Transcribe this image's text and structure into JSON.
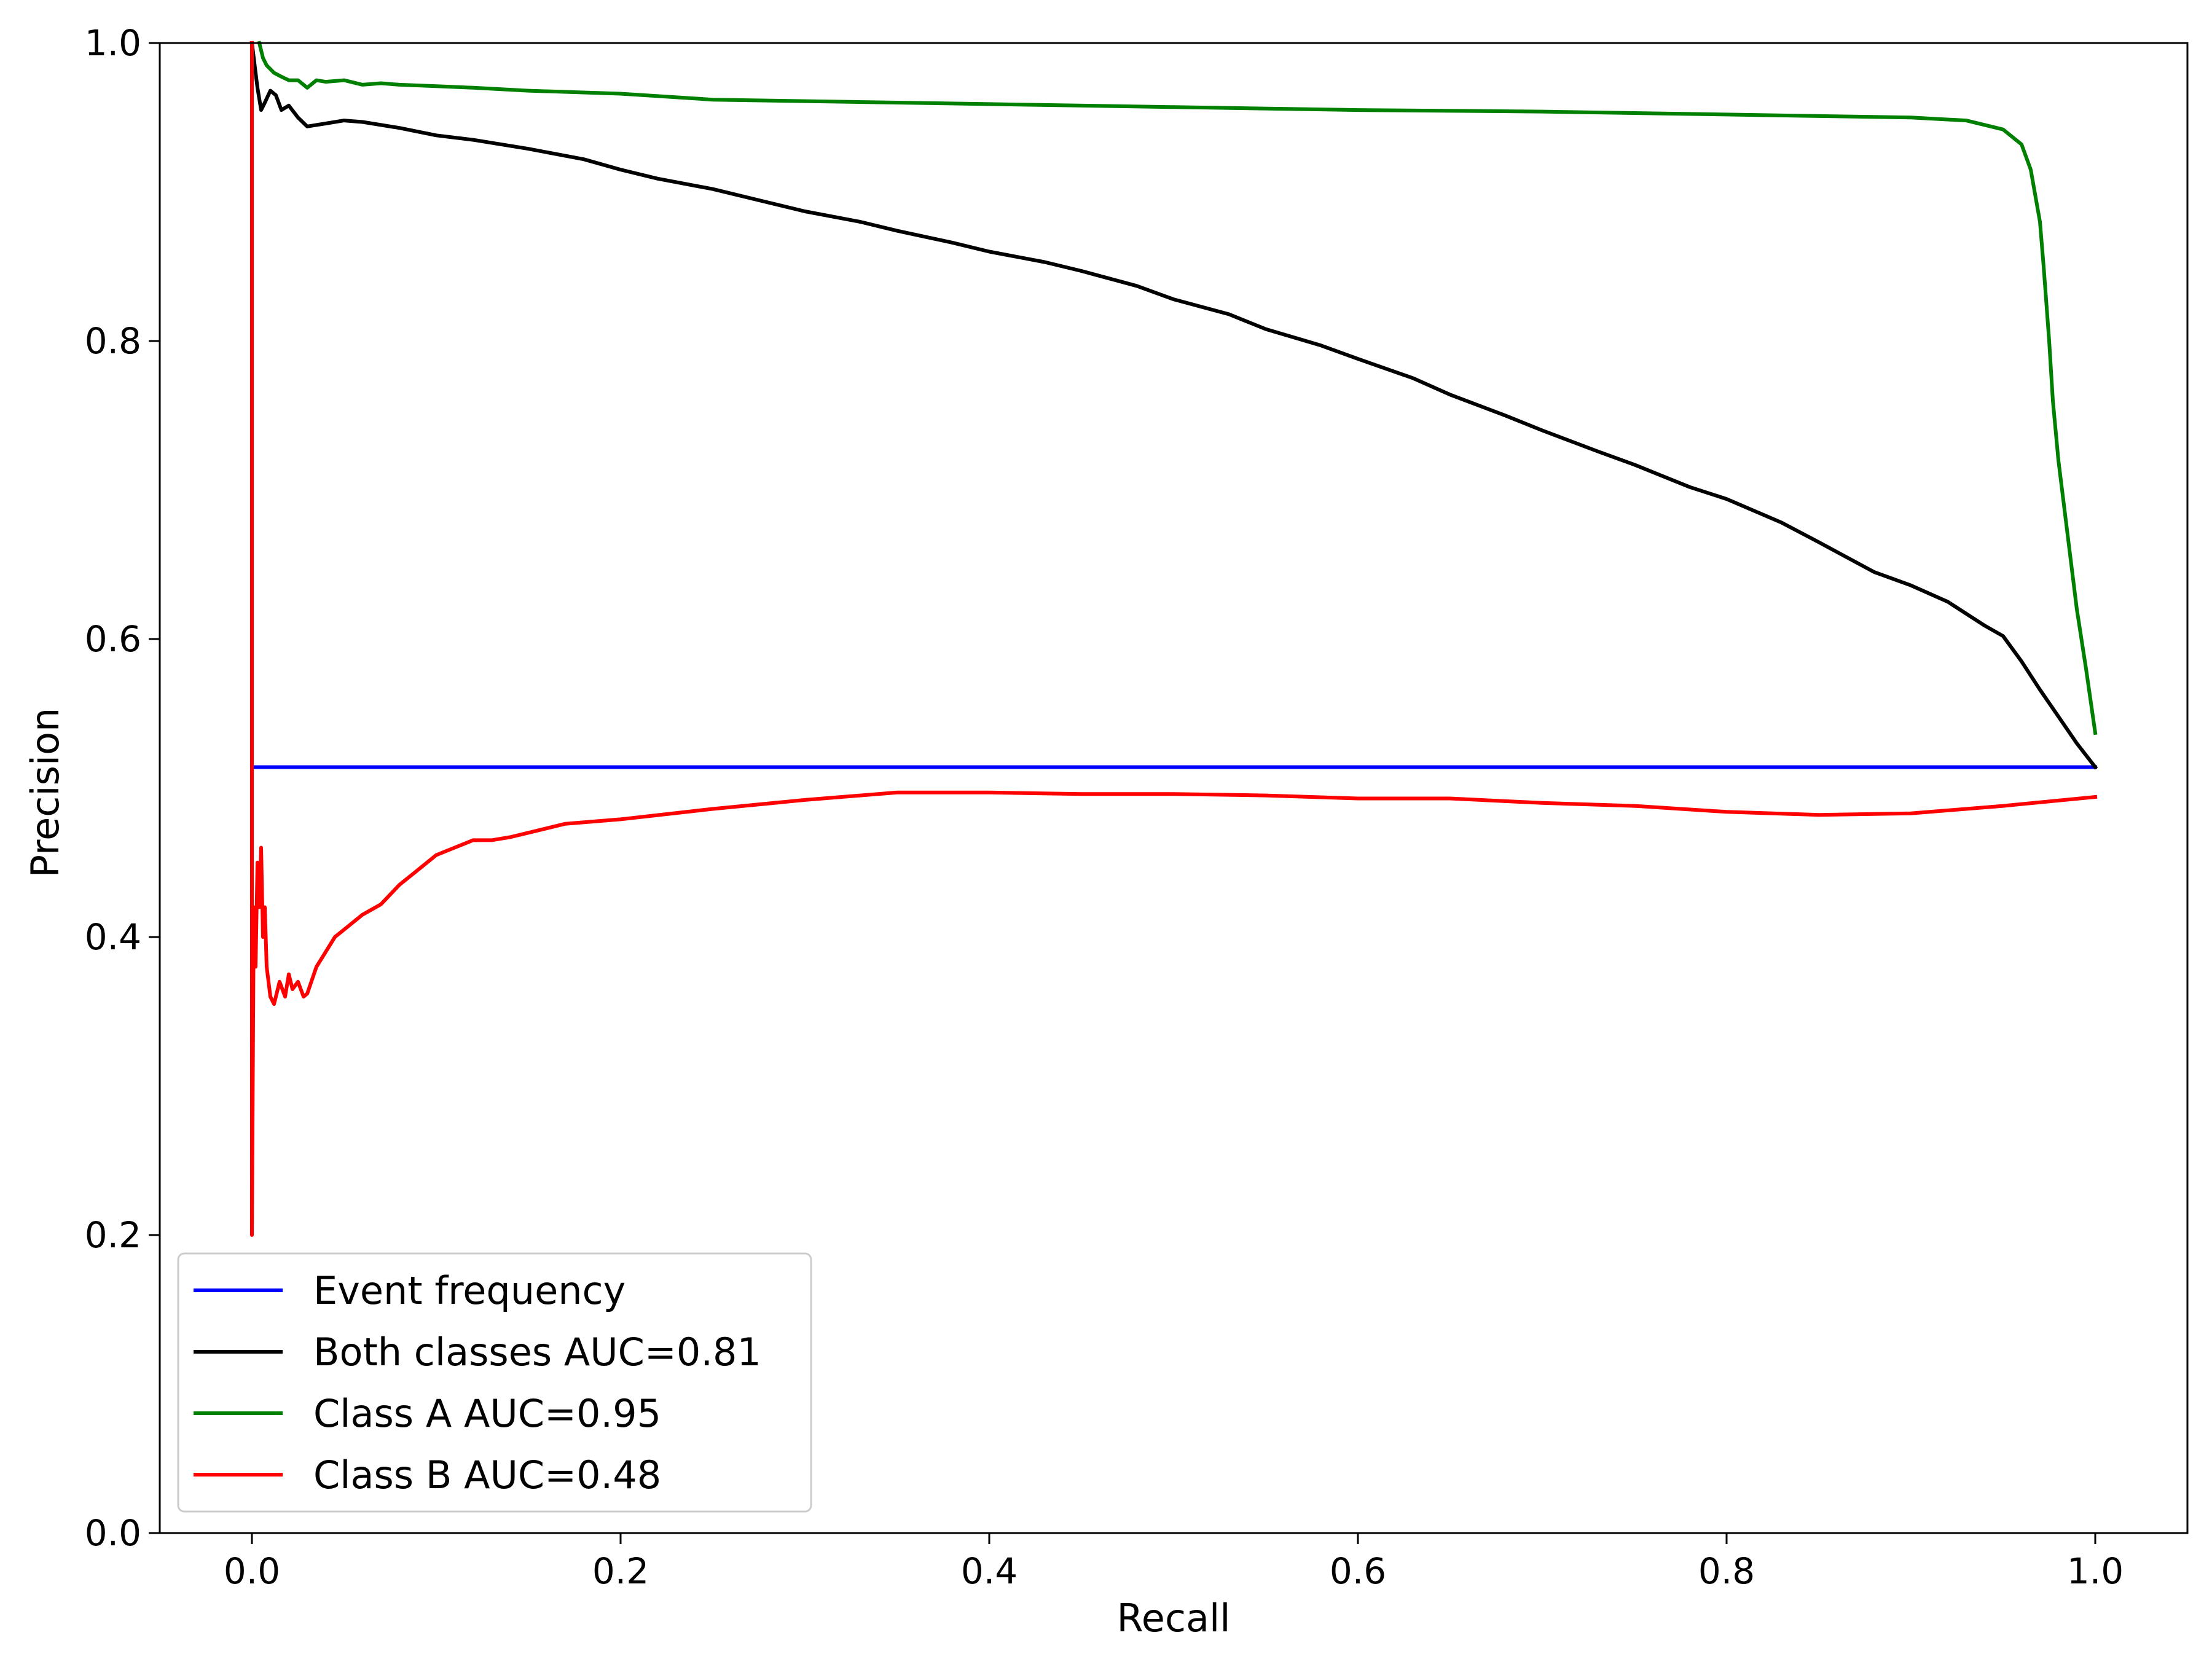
{
  "chart_data": {
    "type": "line",
    "title": "",
    "xlabel": "Recall",
    "ylabel": "Precision",
    "xlim": [
      -0.05,
      1.05
    ],
    "ylim": [
      0.0,
      1.0
    ],
    "xticks": [
      0.0,
      0.2,
      0.4,
      0.6,
      0.8,
      1.0
    ],
    "xtick_labels": [
      "0.0",
      "0.2",
      "0.4",
      "0.6",
      "0.8",
      "1.0"
    ],
    "yticks": [
      0.0,
      0.2,
      0.4,
      0.6,
      0.8,
      1.0
    ],
    "ytick_labels": [
      "0.0",
      "0.2",
      "0.4",
      "0.6",
      "0.8",
      "1.0"
    ],
    "grid": false,
    "legend_position": "lower-left",
    "series": [
      {
        "name": "Event frequency",
        "color": "#0000ff",
        "x": [
          0.0,
          1.0
        ],
        "y": [
          0.514,
          0.514
        ]
      },
      {
        "name": "Both classes AUC=0.81",
        "color": "#000000",
        "x": [
          0.0,
          0.003,
          0.005,
          0.007,
          0.01,
          0.013,
          0.016,
          0.02,
          0.025,
          0.03,
          0.04,
          0.05,
          0.06,
          0.08,
          0.1,
          0.12,
          0.15,
          0.18,
          0.2,
          0.22,
          0.25,
          0.28,
          0.3,
          0.33,
          0.35,
          0.38,
          0.4,
          0.43,
          0.45,
          0.48,
          0.5,
          0.53,
          0.55,
          0.58,
          0.6,
          0.63,
          0.65,
          0.68,
          0.7,
          0.73,
          0.75,
          0.78,
          0.8,
          0.83,
          0.85,
          0.88,
          0.9,
          0.92,
          0.94,
          0.95,
          0.96,
          0.97,
          0.98,
          0.99,
          1.0
        ],
        "y": [
          1.0,
          0.97,
          0.955,
          0.96,
          0.968,
          0.965,
          0.955,
          0.958,
          0.95,
          0.944,
          0.946,
          0.948,
          0.947,
          0.943,
          0.938,
          0.935,
          0.929,
          0.922,
          0.915,
          0.909,
          0.902,
          0.893,
          0.887,
          0.88,
          0.874,
          0.866,
          0.86,
          0.853,
          0.847,
          0.837,
          0.828,
          0.818,
          0.808,
          0.797,
          0.788,
          0.775,
          0.764,
          0.75,
          0.74,
          0.726,
          0.717,
          0.702,
          0.694,
          0.678,
          0.665,
          0.645,
          0.636,
          0.625,
          0.609,
          0.602,
          0.585,
          0.566,
          0.548,
          0.53,
          0.514
        ]
      },
      {
        "name": "Class A AUC=0.95",
        "color": "#008000",
        "x": [
          0.004,
          0.006,
          0.008,
          0.012,
          0.015,
          0.02,
          0.025,
          0.03,
          0.035,
          0.04,
          0.05,
          0.06,
          0.07,
          0.08,
          0.1,
          0.12,
          0.15,
          0.2,
          0.25,
          0.3,
          0.35,
          0.4,
          0.5,
          0.6,
          0.7,
          0.8,
          0.9,
          0.93,
          0.95,
          0.96,
          0.965,
          0.97,
          0.972,
          0.975,
          0.977,
          0.98,
          0.985,
          0.99,
          0.995,
          1.0
        ],
        "y": [
          1.0,
          0.99,
          0.985,
          0.98,
          0.978,
          0.975,
          0.975,
          0.97,
          0.975,
          0.974,
          0.975,
          0.972,
          0.973,
          0.972,
          0.971,
          0.97,
          0.968,
          0.966,
          0.962,
          0.961,
          0.96,
          0.959,
          0.957,
          0.955,
          0.954,
          0.952,
          0.95,
          0.948,
          0.942,
          0.932,
          0.915,
          0.88,
          0.85,
          0.8,
          0.76,
          0.72,
          0.67,
          0.62,
          0.58,
          0.537
        ]
      },
      {
        "name": "Class B AUC=0.48",
        "color": "#ff0000",
        "x": [
          0.0,
          0.0,
          0.001,
          0.002,
          0.003,
          0.004,
          0.005,
          0.006,
          0.007,
          0.008,
          0.01,
          0.012,
          0.015,
          0.018,
          0.02,
          0.022,
          0.025,
          0.028,
          0.03,
          0.035,
          0.04,
          0.045,
          0.05,
          0.06,
          0.07,
          0.08,
          0.09,
          0.1,
          0.11,
          0.12,
          0.13,
          0.14,
          0.15,
          0.17,
          0.2,
          0.25,
          0.3,
          0.35,
          0.4,
          0.45,
          0.5,
          0.55,
          0.6,
          0.65,
          0.7,
          0.75,
          0.8,
          0.85,
          0.9,
          0.95,
          1.0
        ],
        "y": [
          1.0,
          0.2,
          0.42,
          0.38,
          0.45,
          0.42,
          0.46,
          0.4,
          0.42,
          0.38,
          0.36,
          0.355,
          0.37,
          0.36,
          0.375,
          0.365,
          0.37,
          0.36,
          0.362,
          0.38,
          0.39,
          0.4,
          0.405,
          0.415,
          0.422,
          0.435,
          0.445,
          0.455,
          0.46,
          0.465,
          0.465,
          0.467,
          0.47,
          0.476,
          0.479,
          0.486,
          0.492,
          0.497,
          0.497,
          0.496,
          0.496,
          0.495,
          0.493,
          0.493,
          0.49,
          0.488,
          0.484,
          0.482,
          0.483,
          0.488,
          0.494
        ]
      }
    ]
  }
}
